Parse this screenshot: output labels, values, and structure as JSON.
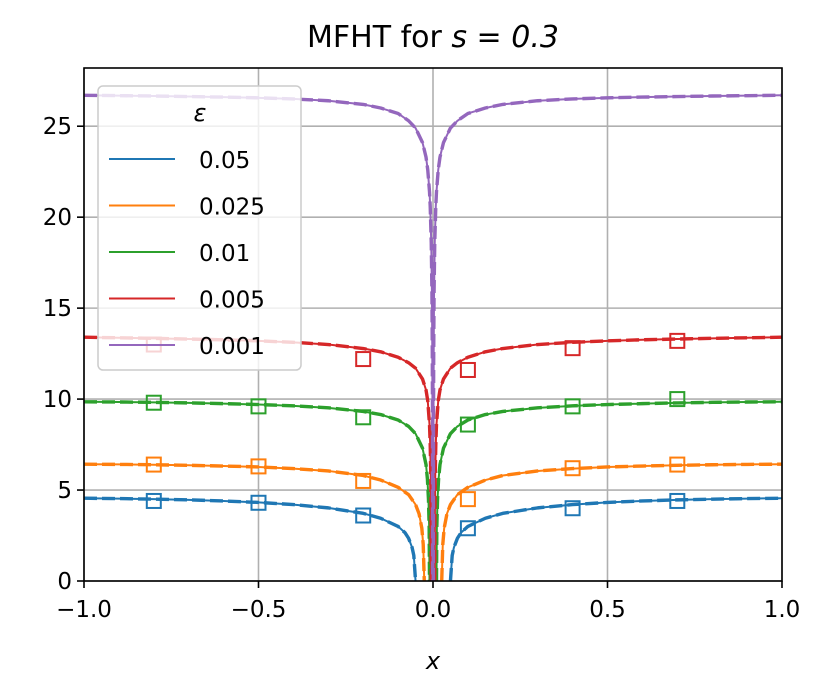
{
  "chart_data": {
    "type": "line",
    "title_prefix": "MFHT for ",
    "title_math": "s = 0.3",
    "xlabel": "x",
    "ylabel": "",
    "xlim": [
      -1.0,
      1.0
    ],
    "ylim": [
      0,
      28.2
    ],
    "xticks": [
      -1.0,
      -0.5,
      0.0,
      0.5,
      1.0
    ],
    "xtick_labels": [
      "−1.0",
      "−0.5",
      "0.0",
      "0.5",
      "1.0"
    ],
    "yticks": [
      0,
      5,
      10,
      15,
      20,
      25
    ],
    "ytick_labels": [
      "0",
      "5",
      "10",
      "15",
      "20",
      "25"
    ],
    "grid": true,
    "legend": {
      "title": "ε",
      "placement": "upper-left"
    },
    "curve_note": "each series drawn as a solid line, a dashed line and square markers",
    "series": [
      {
        "name": "0.05",
        "color": "#1f77b4",
        "epsilon": 0.05,
        "curve_x": [
          0.05,
          0.055,
          0.06,
          0.07,
          0.08,
          0.1,
          0.15,
          0.2,
          0.3,
          0.4,
          0.5,
          0.6,
          0.7,
          0.8,
          0.9,
          1.0
        ],
        "curve_y": [
          0,
          1.4,
          1.85,
          2.35,
          2.65,
          3.0,
          3.45,
          3.72,
          4.02,
          4.2,
          4.32,
          4.4,
          4.46,
          4.5,
          4.53,
          4.55
        ],
        "markers_x": [
          -0.8,
          -0.5,
          -0.2,
          0.1,
          0.4,
          0.7
        ],
        "markers_y": [
          4.4,
          4.3,
          3.6,
          2.9,
          4.0,
          4.4
        ]
      },
      {
        "name": "0.025",
        "color": "#ff7f0e",
        "epsilon": 0.025,
        "curve_x": [
          0.025,
          0.028,
          0.032,
          0.04,
          0.05,
          0.07,
          0.1,
          0.15,
          0.2,
          0.3,
          0.4,
          0.5,
          0.6,
          0.7,
          0.8,
          0.9,
          1.0
        ],
        "curve_y": [
          0,
          2.0,
          2.9,
          3.7,
          4.2,
          4.75,
          5.15,
          5.55,
          5.8,
          6.05,
          6.18,
          6.27,
          6.32,
          6.36,
          6.39,
          6.41,
          6.42
        ],
        "markers_x": [
          -0.8,
          -0.5,
          -0.2,
          0.1,
          0.4,
          0.7
        ],
        "markers_y": [
          6.4,
          6.3,
          5.5,
          4.5,
          6.2,
          6.4
        ]
      },
      {
        "name": "0.01",
        "color": "#2ca02c",
        "epsilon": 0.01,
        "curve_x": [
          0.01,
          0.011,
          0.013,
          0.016,
          0.02,
          0.03,
          0.05,
          0.07,
          0.1,
          0.15,
          0.2,
          0.3,
          0.4,
          0.5,
          0.6,
          0.7,
          0.8,
          0.9,
          1.0
        ],
        "curve_y": [
          0,
          3.0,
          4.5,
          5.6,
          6.4,
          7.3,
          8.1,
          8.5,
          8.85,
          9.15,
          9.32,
          9.52,
          9.63,
          9.7,
          9.75,
          9.79,
          9.82,
          9.84,
          9.85
        ],
        "markers_x": [
          -0.8,
          -0.5,
          -0.2,
          0.1,
          0.4,
          0.7
        ],
        "markers_y": [
          9.8,
          9.6,
          9.0,
          8.6,
          9.6,
          10.0
        ]
      },
      {
        "name": "0.005",
        "color": "#d62728",
        "epsilon": 0.005,
        "curve_x": [
          0.005,
          0.0055,
          0.0065,
          0.008,
          0.01,
          0.015,
          0.02,
          0.03,
          0.05,
          0.07,
          0.1,
          0.15,
          0.2,
          0.3,
          0.4,
          0.5,
          0.6,
          0.7,
          0.8,
          0.9,
          1.0
        ],
        "curve_y": [
          0,
          4.0,
          6.0,
          7.5,
          8.6,
          9.9,
          10.5,
          11.1,
          11.7,
          12.0,
          12.3,
          12.6,
          12.78,
          13.0,
          13.12,
          13.2,
          13.26,
          13.3,
          13.34,
          13.37,
          13.4
        ],
        "markers_x": [
          -0.8,
          -0.2,
          0.1,
          0.4,
          0.7
        ],
        "markers_y": [
          13.0,
          12.2,
          11.6,
          12.8,
          13.2
        ]
      },
      {
        "name": "0.001",
        "color": "#9467bd",
        "epsilon": 0.001,
        "curve_x": [
          0.001,
          0.0012,
          0.0015,
          0.002,
          0.003,
          0.005,
          0.008,
          0.01,
          0.015,
          0.02,
          0.03,
          0.05,
          0.07,
          0.1,
          0.15,
          0.2,
          0.3,
          0.4,
          0.5,
          0.6,
          0.7,
          0.8,
          0.9,
          1.0
        ],
        "curve_y": [
          0,
          6.0,
          9.0,
          12.5,
          15.8,
          18.6,
          20.6,
          21.4,
          22.6,
          23.3,
          24.1,
          24.9,
          25.3,
          25.7,
          26.0,
          26.2,
          26.4,
          26.5,
          26.56,
          26.6,
          26.63,
          26.66,
          26.68,
          26.7
        ],
        "markers_x": [],
        "markers_y": []
      }
    ]
  }
}
